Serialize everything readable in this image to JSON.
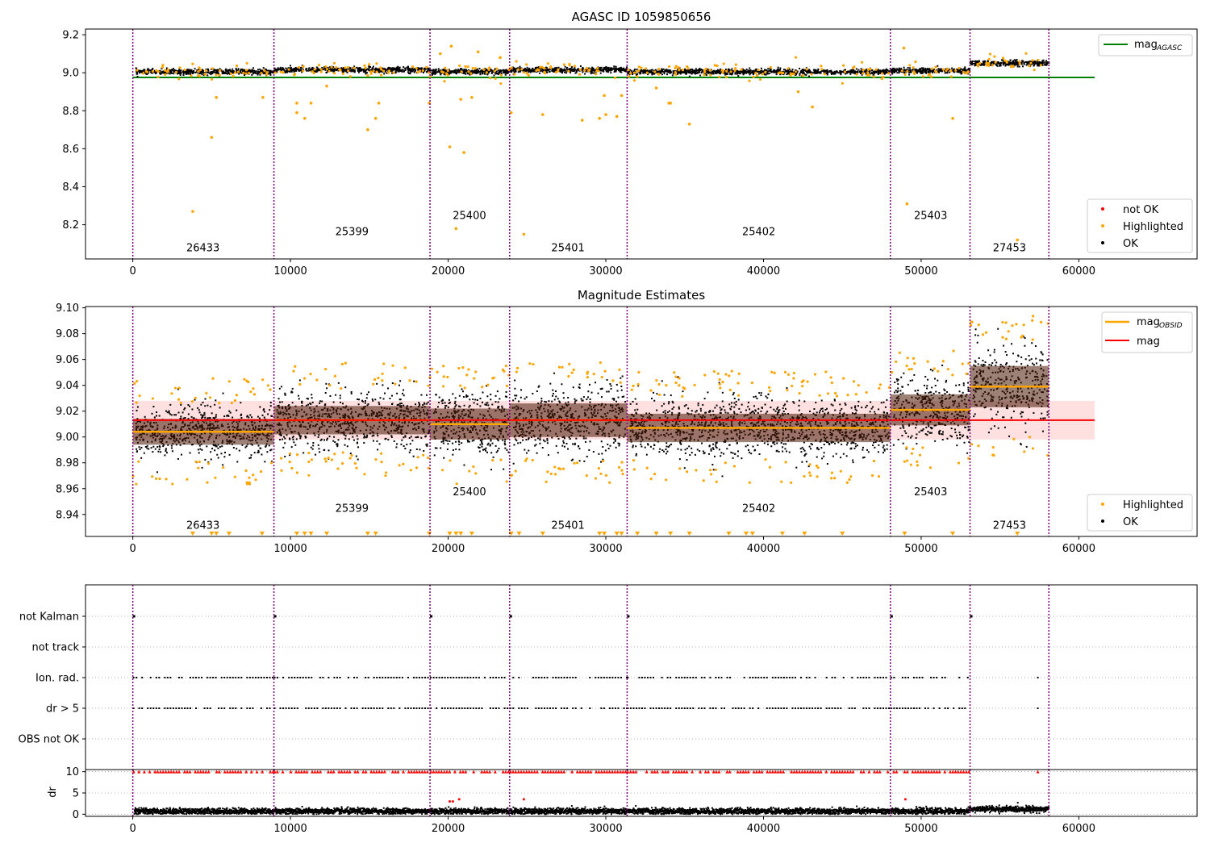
{
  "chart_data": [
    {
      "type": "scatter",
      "title": "AGASC ID 1059850656",
      "xlim": [
        -3000,
        67500
      ],
      "ylim": [
        8.02,
        9.23
      ],
      "x_ticks": [
        0,
        10000,
        20000,
        30000,
        40000,
        50000,
        60000
      ],
      "y_ticks": [
        8.2,
        8.4,
        8.6,
        8.8,
        9.0,
        9.2
      ],
      "y_tick_labels": [
        "8.2",
        "8.4",
        "8.6",
        "8.8",
        "9.0",
        "9.2"
      ],
      "obsid_boundaries": [
        0,
        8950,
        18850,
        23900,
        31350,
        48050,
        53100,
        58100
      ],
      "segment_labels": [
        {
          "text": "26433",
          "x": 4450,
          "y": 8.06
        },
        {
          "text": "25399",
          "x": 13900,
          "y": 8.145
        },
        {
          "text": "25400",
          "x": 21350,
          "y": 8.23
        },
        {
          "text": "25401",
          "x": 27600,
          "y": 8.06
        },
        {
          "text": "25402",
          "x": 39700,
          "y": 8.145
        },
        {
          "text": "25403",
          "x": 50600,
          "y": 8.23
        },
        {
          "text": "27453",
          "x": 55600,
          "y": 8.06
        }
      ],
      "reference_line": {
        "name": "mag_AGASC",
        "legend_main": "mag",
        "legend_sub": "AGASC",
        "value": 8.975,
        "x_range": [
          0,
          61000
        ],
        "color": "#008000"
      },
      "ok_band": {
        "segments": [
          [
            200,
            8950,
            9.005
          ],
          [
            8950,
            18850,
            9.015
          ],
          [
            18850,
            23900,
            9.005
          ],
          [
            23900,
            31350,
            9.015
          ],
          [
            31350,
            48050,
            9.005
          ],
          [
            48050,
            53100,
            9.01
          ],
          [
            53100,
            58100,
            9.05
          ]
        ],
        "spread": 0.016
      },
      "highlighted_outliers": [
        [
          3800,
          8.27
        ],
        [
          5000,
          8.66
        ],
        [
          5300,
          8.87
        ],
        [
          8250,
          8.87
        ],
        [
          10400,
          8.79
        ],
        [
          10400,
          8.84
        ],
        [
          10900,
          8.76
        ],
        [
          11300,
          8.84
        ],
        [
          12300,
          8.93
        ],
        [
          14900,
          8.7
        ],
        [
          15400,
          8.76
        ],
        [
          15600,
          8.84
        ],
        [
          18800,
          8.84
        ],
        [
          19500,
          9.1
        ],
        [
          20100,
          8.61
        ],
        [
          20200,
          9.14
        ],
        [
          20500,
          8.18
        ],
        [
          20800,
          8.86
        ],
        [
          21000,
          8.58
        ],
        [
          21500,
          8.87
        ],
        [
          21900,
          9.11
        ],
        [
          23300,
          9.08
        ],
        [
          24000,
          8.79
        ],
        [
          24800,
          8.15
        ],
        [
          26000,
          8.78
        ],
        [
          28500,
          8.75
        ],
        [
          29600,
          8.76
        ],
        [
          29900,
          8.88
        ],
        [
          30000,
          8.78
        ],
        [
          30700,
          8.77
        ],
        [
          31000,
          8.88
        ],
        [
          33200,
          8.92
        ],
        [
          34000,
          8.84
        ],
        [
          34100,
          8.84
        ],
        [
          35300,
          8.73
        ],
        [
          43100,
          8.82
        ],
        [
          42200,
          8.9
        ],
        [
          49100,
          8.31
        ],
        [
          48900,
          9.13
        ],
        [
          52000,
          8.76
        ],
        [
          56100,
          8.12
        ]
      ],
      "legend_markers": [
        {
          "label": "not OK",
          "color": "#ff0000"
        },
        {
          "label": "Highlighted",
          "color": "#ffa500"
        },
        {
          "label": "OK",
          "color": "#000000"
        }
      ]
    },
    {
      "type": "scatter",
      "title": "Magnitude Estimates",
      "xlim": [
        -3000,
        67500
      ],
      "ylim": [
        8.923,
        9.101
      ],
      "x_ticks": [
        0,
        10000,
        20000,
        30000,
        40000,
        50000,
        60000
      ],
      "y_ticks": [
        8.94,
        8.96,
        8.98,
        9.0,
        9.02,
        9.04,
        9.06,
        9.08,
        9.1
      ],
      "y_tick_labels": [
        "8.94",
        "8.96",
        "8.98",
        "9.00",
        "9.02",
        "9.04",
        "9.06",
        "9.08",
        "9.10"
      ],
      "obsid_boundaries": [
        0,
        8950,
        18850,
        23900,
        31350,
        48050,
        53100,
        58100
      ],
      "segment_labels": [
        {
          "text": "26433",
          "x": 4450,
          "y": 8.929
        },
        {
          "text": "25399",
          "x": 13900,
          "y": 8.942
        },
        {
          "text": "25400",
          "x": 21350,
          "y": 8.955
        },
        {
          "text": "25401",
          "x": 27600,
          "y": 8.929
        },
        {
          "text": "25402",
          "x": 39700,
          "y": 8.942
        },
        {
          "text": "25403",
          "x": 50600,
          "y": 8.955
        },
        {
          "text": "27453",
          "x": 55600,
          "y": 8.929
        }
      ],
      "mag": {
        "legend_label": "mag",
        "value": 9.013,
        "band": [
          8.998,
          9.028
        ],
        "x_range": [
          0,
          61000
        ],
        "color": "#ff0000"
      },
      "mag_obsid": {
        "legend_main": "mag",
        "legend_sub": "OBSID",
        "color": "#ffa500",
        "segments": [
          {
            "x0": 0,
            "x1": 8950,
            "mag": 9.004,
            "std": 0.01
          },
          {
            "x0": 8950,
            "x1": 18850,
            "mag": 9.013,
            "std": 0.011
          },
          {
            "x0": 18850,
            "x1": 23900,
            "mag": 9.01,
            "std": 0.012
          },
          {
            "x0": 23900,
            "x1": 31350,
            "mag": 9.013,
            "std": 0.013
          },
          {
            "x0": 31350,
            "x1": 48050,
            "mag": 9.007,
            "std": 0.011
          },
          {
            "x0": 48050,
            "x1": 53100,
            "mag": 9.021,
            "std": 0.012
          },
          {
            "x0": 53100,
            "x1": 58100,
            "mag": 9.039,
            "std": 0.016
          }
        ]
      },
      "clipped_marker_x": [
        3800,
        5000,
        5300,
        6100,
        8200,
        10400,
        10900,
        11300,
        12300,
        14900,
        15400,
        18800,
        20100,
        20500,
        20800,
        21500,
        24000,
        24500,
        26000,
        29600,
        29900,
        30700,
        31000,
        32000,
        33200,
        34100,
        35300,
        37800,
        38900,
        39300,
        41200,
        42600,
        45000,
        48950,
        52000,
        56100
      ],
      "legend_markers": [
        {
          "label": "Highlighted",
          "color": "#ffa500"
        },
        {
          "label": "OK",
          "color": "#000000"
        }
      ]
    },
    {
      "type": "scatter",
      "title": "",
      "xlim": [
        -3000,
        67500
      ],
      "categories": [
        "not Kalman",
        "not track",
        "Ion. rad.",
        "dr > 5",
        "OBS not OK"
      ],
      "flag_points": {
        "not Kalman": [
          0,
          8950,
          18850,
          23900,
          31350,
          48050,
          53100
        ],
        "not track": [],
        "Ion. rad.": {
          "ranges": [
            [
              0,
              8950
            ],
            [
              8950,
              18850
            ],
            [
              18850,
              23900
            ],
            [
              23900,
              31350
            ],
            [
              31350,
              48050
            ],
            [
              48050,
              53100
            ]
          ],
          "sparse_after": [
            57400
          ]
        },
        "dr > 5": {
          "ranges": [
            [
              0,
              8950
            ],
            [
              8950,
              18850
            ],
            [
              18850,
              23900
            ],
            [
              23900,
              31350
            ],
            [
              31350,
              48050
            ],
            [
              48050,
              53100
            ]
          ],
          "sparse_after": [
            57400
          ]
        },
        "OBS not OK": []
      },
      "obsid_boundaries": [
        0,
        8950,
        18850,
        23900,
        31350,
        48050,
        53100,
        58100
      ]
    },
    {
      "type": "scatter",
      "title": "",
      "ylabel": "dr",
      "xlim": [
        -3000,
        67500
      ],
      "ylim": [
        -0.5,
        10.5
      ],
      "y_ticks": [
        0,
        5,
        10
      ],
      "y_tick_labels": [
        "0",
        "5",
        "10"
      ],
      "x_ticks": [
        0,
        10000,
        20000,
        30000,
        40000,
        50000,
        60000
      ],
      "x_tick_labels": [
        "0",
        "10000",
        "20000",
        "30000",
        "40000",
        "50000",
        "60000"
      ],
      "clipped_value": 10,
      "typical_dr": 0.7,
      "late_dr": 1.2,
      "outliers": [
        [
          20100,
          3.0
        ],
        [
          20300,
          3.0
        ],
        [
          20700,
          3.5
        ],
        [
          24800,
          3.5
        ],
        [
          49000,
          3.5
        ]
      ],
      "obsid_boundaries": [
        0,
        8950,
        18850,
        23900,
        31350,
        48050,
        53100,
        58100
      ]
    }
  ]
}
